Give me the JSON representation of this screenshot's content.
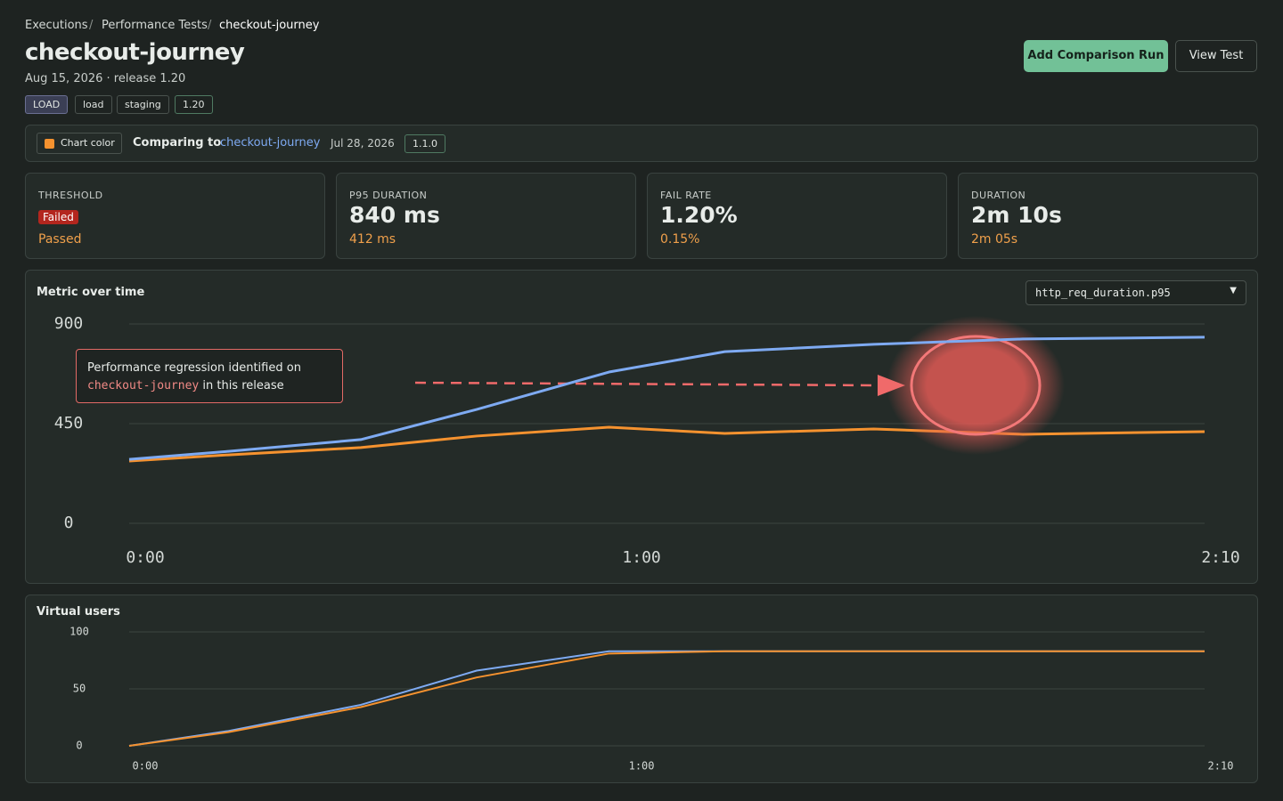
{
  "breadcrumb": [
    "Executions",
    "Performance Tests",
    "checkout-journey"
  ],
  "header": {
    "title": "checkout-journey",
    "subtitle": "Aug 15, 2026 · release 1.20",
    "tags": [
      "LOAD",
      "load",
      "staging",
      "1.20"
    ],
    "buttons": [
      "Add Comparison Run",
      "View Test"
    ]
  },
  "comparison": {
    "chart_color": "Chart color",
    "label": "Comparing to",
    "test": "checkout-journey",
    "date": "Jul 28, 2026",
    "version": "1.1.0"
  },
  "stats": [
    {
      "label": "THRESHOLD",
      "value": "Failed",
      "compare": "Passed"
    },
    {
      "label": "P95 DURATION",
      "value": "840 ms",
      "compare": "412 ms"
    },
    {
      "label": "FAIL RATE",
      "value": "1.20%",
      "compare": "0.15%"
    },
    {
      "label": "DURATION",
      "value": "2m 10s",
      "compare": "2m 05s"
    }
  ],
  "chart_data": [
    {
      "type": "line",
      "title": "Metric over time",
      "selector": "http_req_duration.p95",
      "annotation": [
        "Performance regression identified on",
        "checkout-journey",
        "in this release"
      ],
      "x": [
        0,
        12,
        28,
        42,
        58,
        72,
        90,
        108,
        130
      ],
      "series": [
        {
          "color": "#7eaaf2",
          "values": [
            289,
            325,
            378,
            514,
            683,
            775,
            808,
            832,
            840
          ]
        },
        {
          "color": "#f5922f",
          "values": [
            281,
            309,
            342,
            394,
            434,
            406,
            426,
            402,
            414
          ]
        }
      ],
      "xlim": [
        0,
        130
      ],
      "xticks": [
        {
          "value": 0,
          "label": "0:00"
        },
        {
          "value": 60,
          "label": "1:00"
        },
        {
          "value": 130,
          "label": "2:10"
        }
      ],
      "ylim": [
        0,
        900
      ],
      "yticks": [
        0,
        450,
        900
      ],
      "grid": true
    },
    {
      "type": "line",
      "title": "Virtual users",
      "x": [
        0,
        12,
        28,
        42,
        58,
        72,
        90,
        108,
        130
      ],
      "series": [
        {
          "color": "#7eaaf2",
          "values": [
            0,
            13,
            36,
            66,
            83,
            83,
            83,
            83,
            83
          ]
        },
        {
          "color": "#f5922f",
          "values": [
            0,
            12,
            34,
            60,
            81,
            83,
            83,
            83,
            83
          ]
        }
      ],
      "xlim": [
        0,
        130
      ],
      "xticks": [
        {
          "value": 0,
          "label": "0:00"
        },
        {
          "value": 60,
          "label": "1:00"
        },
        {
          "value": 130,
          "label": "2:10"
        }
      ],
      "ylim": [
        0,
        100
      ],
      "yticks": [
        0,
        50,
        100
      ],
      "grid": true
    }
  ]
}
